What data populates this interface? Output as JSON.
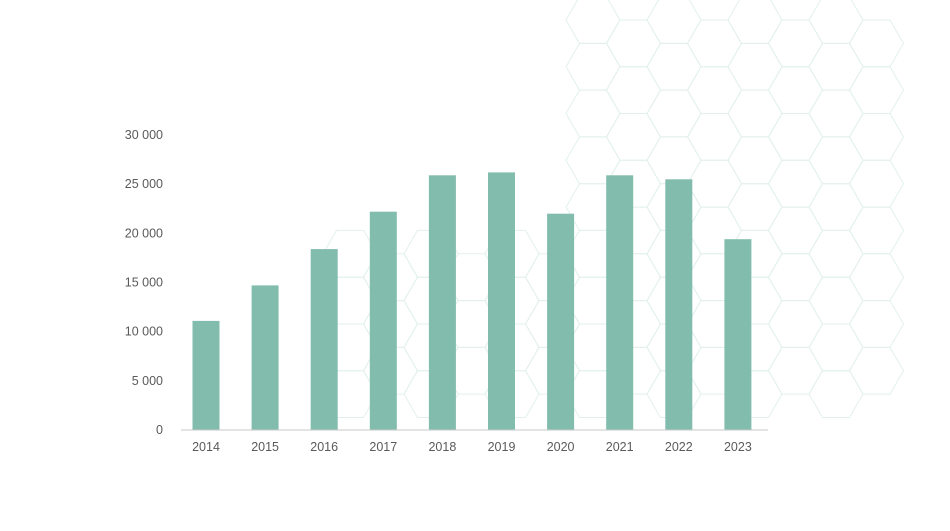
{
  "chart_data": {
    "type": "bar",
    "categories": [
      "2014",
      "2015",
      "2016",
      "2017",
      "2018",
      "2019",
      "2020",
      "2021",
      "2022",
      "2023"
    ],
    "values": [
      11100,
      14700,
      18400,
      22200,
      25900,
      26200,
      22000,
      25900,
      25500,
      19400
    ],
    "title": "",
    "xlabel": "",
    "ylabel": "",
    "ylim": [
      0,
      30000
    ],
    "yticks": [
      0,
      5000,
      10000,
      15000,
      20000,
      25000,
      30000
    ],
    "ytick_labels": [
      "0",
      "5 000",
      "10 000",
      "15 000",
      "20 000",
      "25 000",
      "30 000"
    ],
    "grid": false,
    "legend": "none",
    "bar_color": "#82bcad",
    "axis_color": "#c8c8c8",
    "decoration_color": "#7fbfad"
  }
}
